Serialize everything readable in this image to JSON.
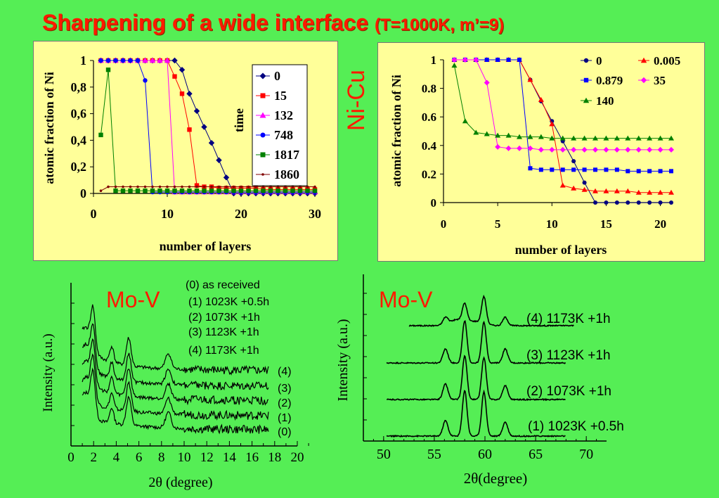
{
  "slide": {
    "title_main": "Sharpening of a wide interface",
    "title_sub": "(T=1000K, m’=9)",
    "nicu_label": "Ni-Cu",
    "mov_label_left": "Mo-V",
    "mov_label_right": "Mo-V"
  },
  "chart_data": [
    {
      "type": "line",
      "xlabel": "number of layers",
      "ylabel": "atomic fraction of Ni",
      "xlim": [
        0,
        30
      ],
      "ylim": [
        0,
        1
      ],
      "x_ticks": [
        "0",
        "10",
        "20",
        "30"
      ],
      "y_ticks": [
        "0",
        "0,2",
        "0,4",
        "0,6",
        "0,8",
        "1"
      ],
      "legend_title": "time",
      "legend_position": "right",
      "grid": false,
      "series": [
        {
          "name": "0",
          "color": "#000080",
          "marker": "diamond",
          "x": [
            1,
            2,
            3,
            4,
            5,
            6,
            7,
            8,
            9,
            10,
            11,
            12,
            13,
            14,
            15,
            16,
            17,
            18,
            19,
            20,
            21,
            22,
            23,
            24,
            25,
            26,
            27,
            28,
            29,
            30
          ],
          "y": [
            1,
            1,
            1,
            1,
            1,
            1,
            1,
            1,
            1,
            1,
            1,
            0.93,
            0.75,
            0.62,
            0.5,
            0.38,
            0.25,
            0.12,
            0,
            0,
            0,
            0,
            0,
            0,
            0,
            0,
            0,
            0,
            0,
            0
          ]
        },
        {
          "name": "15",
          "color": "#ff0000",
          "marker": "square",
          "x": [
            1,
            2,
            3,
            4,
            5,
            6,
            7,
            8,
            9,
            10,
            11,
            12,
            13,
            14,
            15,
            16,
            17,
            18,
            19,
            20,
            21,
            22,
            23,
            24,
            25,
            26,
            27,
            28,
            29,
            30
          ],
          "y": [
            1,
            1,
            1,
            1,
            1,
            1,
            1,
            1,
            1,
            1,
            0.88,
            0.75,
            0.48,
            0.06,
            0.05,
            0.05,
            0.04,
            0.04,
            0.04,
            0.04,
            0.04,
            0.04,
            0.03,
            0.03,
            0.03,
            0.03,
            0.03,
            0.03,
            0.03,
            0.03
          ]
        },
        {
          "name": "132",
          "color": "#ff00ff",
          "marker": "triangle",
          "x": [
            1,
            2,
            3,
            4,
            5,
            6,
            7,
            8,
            9,
            10,
            11,
            12,
            13,
            14,
            15,
            16,
            17,
            18,
            19,
            20,
            21,
            22,
            23,
            24,
            25,
            26,
            27,
            28,
            29,
            30
          ],
          "y": [
            1,
            1,
            1,
            1,
            1,
            1,
            1,
            1,
            1,
            1,
            0.01,
            0.01,
            0.01,
            0.01,
            0.01,
            0.01,
            0.01,
            0.01,
            0.01,
            0.01,
            0.01,
            0.01,
            0.01,
            0.01,
            0.01,
            0.01,
            0.01,
            0.01,
            0.01,
            0.01
          ]
        },
        {
          "name": "748",
          "color": "#0000ff",
          "marker": "circle",
          "x": [
            1,
            2,
            3,
            4,
            5,
            6,
            7,
            8,
            9,
            10,
            11,
            12,
            13,
            14,
            15,
            16,
            17,
            18,
            19,
            20,
            21,
            22,
            23,
            24,
            25,
            26,
            27,
            28,
            29,
            30
          ],
          "y": [
            1,
            1,
            1,
            1,
            1,
            1,
            0.85,
            0.01,
            0.01,
            0.01,
            0.01,
            0.01,
            0.01,
            0.01,
            0.01,
            0.01,
            0.01,
            0.01,
            0.01,
            0.01,
            0.01,
            0.01,
            0.01,
            0.01,
            0.01,
            0.01,
            0.01,
            0.01,
            0.01,
            0.01
          ]
        },
        {
          "name": "1817",
          "color": "#008000",
          "marker": "square",
          "x": [
            1,
            2,
            3,
            4,
            5,
            6,
            7,
            8,
            9,
            10,
            11,
            12,
            13,
            14,
            15,
            16,
            17,
            18,
            19,
            20,
            21,
            22,
            23,
            24,
            25,
            26,
            27,
            28,
            29,
            30
          ],
          "y": [
            0.44,
            0.93,
            0.02,
            0.02,
            0.02,
            0.02,
            0.02,
            0.02,
            0.02,
            0.02,
            0.02,
            0.02,
            0.02,
            0.02,
            0.02,
            0.02,
            0.02,
            0.02,
            0.02,
            0.02,
            0.02,
            0.02,
            0.02,
            0.02,
            0.02,
            0.02,
            0.02,
            0.02,
            0.02,
            0.02
          ]
        },
        {
          "name": "1860",
          "color": "#800000",
          "marker": "dot",
          "x": [
            1,
            2,
            3,
            4,
            5,
            6,
            7,
            8,
            9,
            10,
            11,
            12,
            13,
            14,
            15,
            16,
            17,
            18,
            19,
            20,
            21,
            22,
            23,
            24,
            25,
            26,
            27,
            28,
            29,
            30
          ],
          "y": [
            0.02,
            0.05,
            0.05,
            0.05,
            0.05,
            0.05,
            0.05,
            0.05,
            0.05,
            0.05,
            0.05,
            0.05,
            0.05,
            0.05,
            0.05,
            0.05,
            0.05,
            0.05,
            0.05,
            0.05,
            0.05,
            0.05,
            0.05,
            0.05,
            0.05,
            0.05,
            0.05,
            0.05,
            0.05,
            0.05
          ]
        }
      ]
    },
    {
      "type": "line",
      "xlabel": "number of layers",
      "ylabel": "atomic fraction of Ni",
      "xlim": [
        0,
        21
      ],
      "ylim": [
        0,
        1
      ],
      "x_ticks": [
        "0",
        "5",
        "10",
        "15",
        "20"
      ],
      "y_ticks": [
        "0",
        "0.2",
        "0.4",
        "0.6",
        "0.8",
        "1"
      ],
      "legend_position": "top-right",
      "grid": false,
      "series": [
        {
          "name": "0",
          "color": "#000080",
          "marker": "circle",
          "x": [
            1,
            2,
            3,
            4,
            5,
            6,
            7,
            8,
            9,
            10,
            11,
            12,
            13,
            14,
            15,
            16,
            17,
            18,
            19,
            20,
            21
          ],
          "y": [
            1,
            1,
            1,
            1,
            1,
            1,
            1,
            0.86,
            0.71,
            0.57,
            0.43,
            0.29,
            0.14,
            0,
            0,
            0,
            0,
            0,
            0,
            0,
            0
          ]
        },
        {
          "name": "0.005",
          "color": "#ff0000",
          "marker": "triangle",
          "x": [
            1,
            2,
            3,
            4,
            5,
            6,
            7,
            8,
            9,
            10,
            11,
            12,
            13,
            14,
            15,
            16,
            17,
            18,
            19,
            20,
            21
          ],
          "y": [
            1,
            1,
            1,
            1,
            1,
            1,
            1,
            0.86,
            0.72,
            0.55,
            0.12,
            0.1,
            0.09,
            0.08,
            0.08,
            0.08,
            0.08,
            0.07,
            0.07,
            0.07,
            0.07
          ]
        },
        {
          "name": "0.879",
          "color": "#0000ff",
          "marker": "square",
          "x": [
            1,
            2,
            3,
            4,
            5,
            6,
            7,
            8,
            9,
            10,
            11,
            12,
            13,
            14,
            15,
            16,
            17,
            18,
            19,
            20,
            21
          ],
          "y": [
            1,
            1,
            1,
            1,
            1,
            1,
            1,
            0.24,
            0.23,
            0.23,
            0.23,
            0.23,
            0.23,
            0.23,
            0.23,
            0.23,
            0.22,
            0.22,
            0.22,
            0.22,
            0.22
          ]
        },
        {
          "name": "35",
          "color": "#ff00ff",
          "marker": "diamond",
          "x": [
            1,
            2,
            3,
            4,
            5,
            6,
            7,
            8,
            9,
            10,
            11,
            12,
            13,
            14,
            15,
            16,
            17,
            18,
            19,
            20,
            21
          ],
          "y": [
            1,
            1,
            1,
            0.84,
            0.39,
            0.38,
            0.38,
            0.38,
            0.37,
            0.37,
            0.37,
            0.37,
            0.37,
            0.37,
            0.37,
            0.37,
            0.37,
            0.37,
            0.37,
            0.37,
            0.37
          ]
        },
        {
          "name": "140",
          "color": "#008000",
          "marker": "triangle",
          "x": [
            1,
            2,
            3,
            4,
            5,
            6,
            7,
            8,
            9,
            10,
            11,
            12,
            13,
            14,
            15,
            16,
            17,
            18,
            19,
            20,
            21
          ],
          "y": [
            0.96,
            0.57,
            0.49,
            0.48,
            0.47,
            0.47,
            0.46,
            0.46,
            0.46,
            0.45,
            0.45,
            0.45,
            0.45,
            0.45,
            0.45,
            0.45,
            0.45,
            0.45,
            0.45,
            0.45,
            0.45
          ]
        }
      ]
    },
    {
      "type": "line",
      "xlabel": "2θ (degree)",
      "ylabel": "Intensity (a.u.)",
      "xlim": [
        0,
        20
      ],
      "x_ticks": [
        "0",
        "2",
        "4",
        "6",
        "8",
        "10",
        "12",
        "14",
        "16",
        "18",
        "20"
      ],
      "peaks_deg": [
        2.0,
        3.6,
        5.1,
        8.6
      ],
      "legend_entries": [
        "(0)  as received",
        "(1)  1023K +0.5h",
        "(2)  1073K +1h",
        "(3)  1123K +1h",
        "(4)  1173K +1h"
      ],
      "curve_labels": [
        "(4)",
        "(3)",
        "(2)",
        "(1)",
        "(0)"
      ],
      "series": [
        {
          "name": "(0)"
        },
        {
          "name": "(1)"
        },
        {
          "name": "(2)"
        },
        {
          "name": "(3)"
        },
        {
          "name": "(4)"
        }
      ]
    },
    {
      "type": "line",
      "xlabel": "2θ(degree)",
      "ylabel": "Intensity (a.u.)",
      "xlim": [
        50,
        70
      ],
      "x_ticks": [
        "50",
        "55",
        "60",
        "65",
        "70"
      ],
      "peaks_deg": [
        56.1,
        58.0,
        59.9,
        62.0
      ],
      "curve_labels": [
        "(4) 1173K +1h",
        "(3) 1123K +1h",
        "(2) 1073K +1h",
        "(1)  1023K +0.5h"
      ],
      "series": [
        {
          "name": "(4)"
        },
        {
          "name": "(3)"
        },
        {
          "name": "(2)"
        },
        {
          "name": "(1)"
        }
      ]
    }
  ]
}
